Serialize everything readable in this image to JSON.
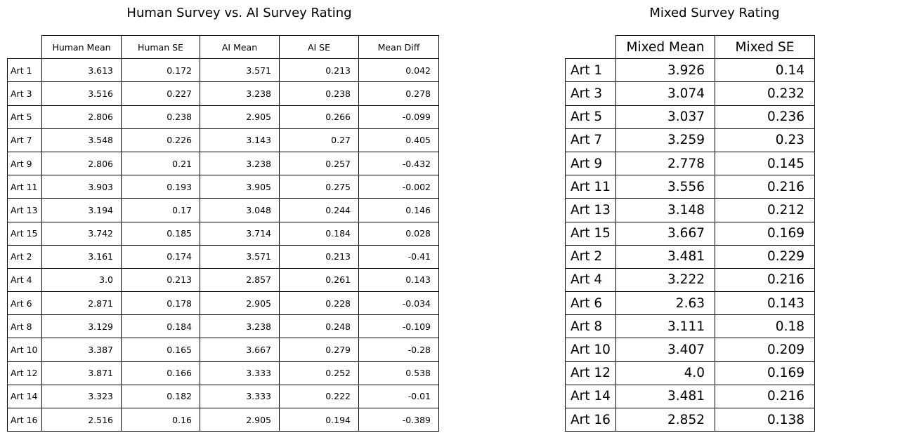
{
  "chart_data": [
    {
      "type": "table",
      "title": "Human Survey vs. AI Survey Rating",
      "columns": [
        "Human Mean",
        "Human SE",
        "AI Mean",
        "AI SE",
        "Mean Diff"
      ],
      "rows": [
        {
          "label": "Art 1",
          "values": [
            "3.613",
            "0.172",
            "3.571",
            "0.213",
            "0.042"
          ]
        },
        {
          "label": "Art 3",
          "values": [
            "3.516",
            "0.227",
            "3.238",
            "0.238",
            "0.278"
          ]
        },
        {
          "label": "Art 5",
          "values": [
            "2.806",
            "0.238",
            "2.905",
            "0.266",
            "-0.099"
          ]
        },
        {
          "label": "Art 7",
          "values": [
            "3.548",
            "0.226",
            "3.143",
            "0.27",
            "0.405"
          ]
        },
        {
          "label": "Art 9",
          "values": [
            "2.806",
            "0.21",
            "3.238",
            "0.257",
            "-0.432"
          ]
        },
        {
          "label": "Art 11",
          "values": [
            "3.903",
            "0.193",
            "3.905",
            "0.275",
            "-0.002"
          ]
        },
        {
          "label": "Art 13",
          "values": [
            "3.194",
            "0.17",
            "3.048",
            "0.244",
            "0.146"
          ]
        },
        {
          "label": "Art 15",
          "values": [
            "3.742",
            "0.185",
            "3.714",
            "0.184",
            "0.028"
          ]
        },
        {
          "label": "Art 2",
          "values": [
            "3.161",
            "0.174",
            "3.571",
            "0.213",
            "-0.41"
          ]
        },
        {
          "label": "Art 4",
          "values": [
            "3.0",
            "0.213",
            "2.857",
            "0.261",
            "0.143"
          ]
        },
        {
          "label": "Art 6",
          "values": [
            "2.871",
            "0.178",
            "2.905",
            "0.228",
            "-0.034"
          ]
        },
        {
          "label": "Art 8",
          "values": [
            "3.129",
            "0.184",
            "3.238",
            "0.248",
            "-0.109"
          ]
        },
        {
          "label": "Art 10",
          "values": [
            "3.387",
            "0.165",
            "3.667",
            "0.279",
            "-0.28"
          ]
        },
        {
          "label": "Art 12",
          "values": [
            "3.871",
            "0.166",
            "3.333",
            "0.252",
            "0.538"
          ]
        },
        {
          "label": "Art 14",
          "values": [
            "3.323",
            "0.182",
            "3.333",
            "0.222",
            "-0.01"
          ]
        },
        {
          "label": "Art 16",
          "values": [
            "2.516",
            "0.16",
            "2.905",
            "0.194",
            "-0.389"
          ]
        }
      ]
    },
    {
      "type": "table",
      "title": "Mixed Survey Rating",
      "columns": [
        "Mixed Mean",
        "Mixed SE"
      ],
      "rows": [
        {
          "label": "Art 1",
          "values": [
            "3.926",
            "0.14"
          ]
        },
        {
          "label": "Art 3",
          "values": [
            "3.074",
            "0.232"
          ]
        },
        {
          "label": "Art 5",
          "values": [
            "3.037",
            "0.236"
          ]
        },
        {
          "label": "Art 7",
          "values": [
            "3.259",
            "0.23"
          ]
        },
        {
          "label": "Art 9",
          "values": [
            "2.778",
            "0.145"
          ]
        },
        {
          "label": "Art 11",
          "values": [
            "3.556",
            "0.216"
          ]
        },
        {
          "label": "Art 13",
          "values": [
            "3.148",
            "0.212"
          ]
        },
        {
          "label": "Art 15",
          "values": [
            "3.667",
            "0.169"
          ]
        },
        {
          "label": "Art 2",
          "values": [
            "3.481",
            "0.229"
          ]
        },
        {
          "label": "Art 4",
          "values": [
            "3.222",
            "0.216"
          ]
        },
        {
          "label": "Art 6",
          "values": [
            "2.63",
            "0.143"
          ]
        },
        {
          "label": "Art 8",
          "values": [
            "3.111",
            "0.18"
          ]
        },
        {
          "label": "Art 10",
          "values": [
            "3.407",
            "0.209"
          ]
        },
        {
          "label": "Art 12",
          "values": [
            "4.0",
            "0.169"
          ]
        },
        {
          "label": "Art 14",
          "values": [
            "3.481",
            "0.216"
          ]
        },
        {
          "label": "Art 16",
          "values": [
            "2.852",
            "0.138"
          ]
        }
      ]
    }
  ]
}
